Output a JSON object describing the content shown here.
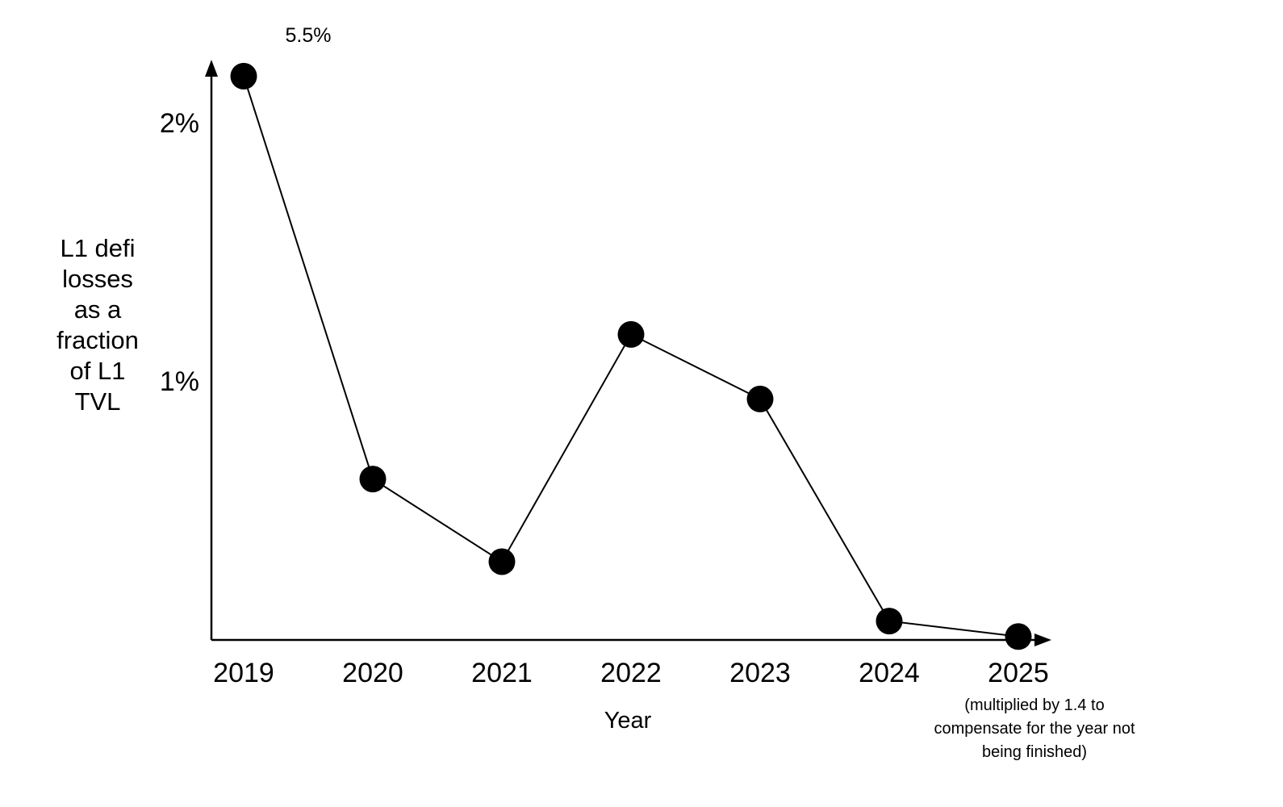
{
  "chart_data": {
    "type": "line",
    "title": "",
    "xlabel": "Year",
    "ylabel": "L1 defi losses as a fraction of L1 TVL",
    "categories": [
      "2019",
      "2020",
      "2021",
      "2022",
      "2023",
      "2024",
      "2025"
    ],
    "series": [
      {
        "name": "L1 defi losses as a fraction of L1 TVL",
        "values_pct": [
          5.5,
          0.62,
          0.3,
          1.18,
          0.93,
          0.07,
          0.01
        ],
        "plotted_pct": [
          2.18,
          0.62,
          0.3,
          1.18,
          0.93,
          0.07,
          0.01
        ]
      }
    ],
    "yticks": [
      {
        "value": 1,
        "label": "1%"
      },
      {
        "value": 2,
        "label": "2%"
      }
    ],
    "ylim_pct": [
      0,
      2.25
    ],
    "grid": false,
    "legend": false,
    "annotations": [
      {
        "text": "5.5%",
        "x": "2019"
      }
    ],
    "x_axis_note": "(multiplied by 1.4 to compensate for the year not being finished)",
    "marker_shape": "circle",
    "marker_radius": 16.5,
    "marker_color": "#000000",
    "line_color": "#000000",
    "axis_color": "#000000",
    "text_color": "#000000",
    "background_color": "#ffffff"
  }
}
